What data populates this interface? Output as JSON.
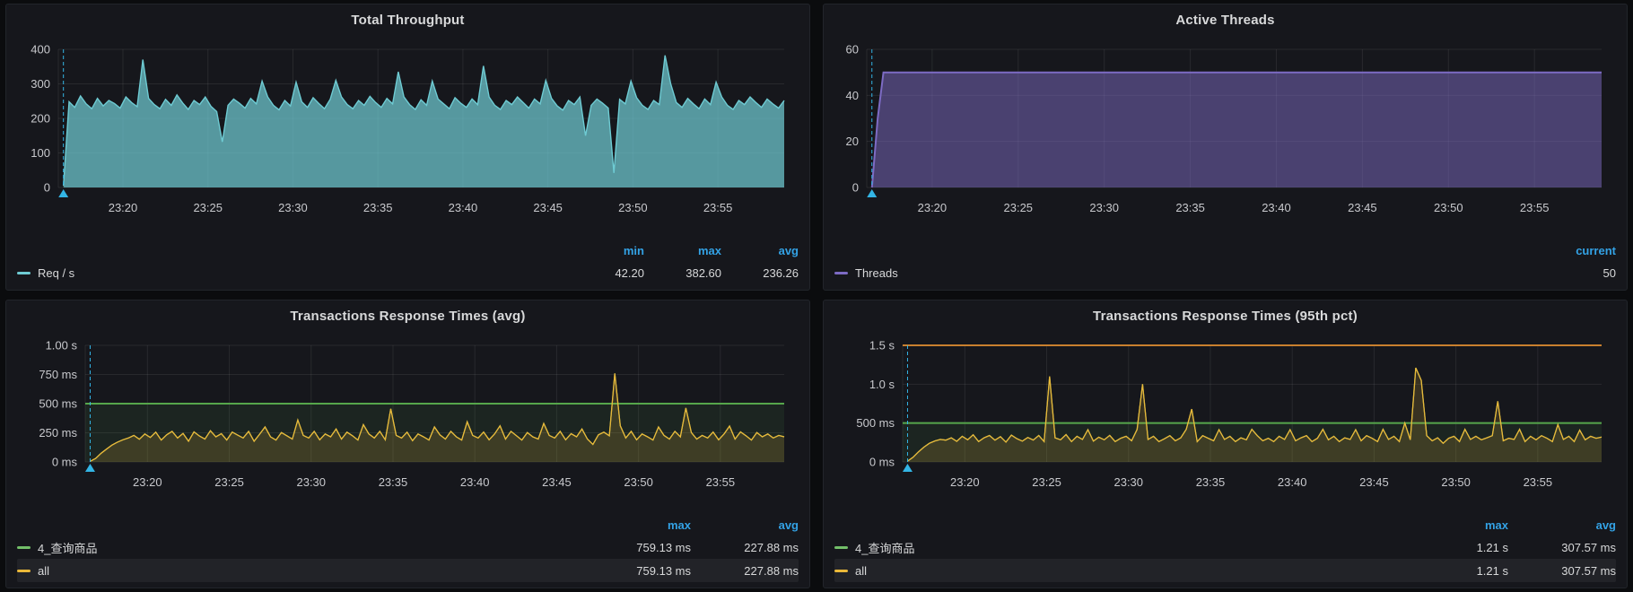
{
  "colors": {
    "page_background": "#0b0c0e",
    "panel_background": "#16171c",
    "grid_line": "rgba(255,255,255,0.08)",
    "axis_text": "#c8c9cd",
    "title_text": "#d8d9da",
    "legend_header_blue": "#33a2e5",
    "annotation_cyan": "#33b5e5",
    "threshold_green": "#56a64b",
    "threshold_orange": "#c9802e"
  },
  "x_axis": {
    "start_minute": 16.2,
    "end_minute": 58.9,
    "annotation_minute": 16.5,
    "tick_minutes": [
      20,
      25,
      30,
      35,
      40,
      45,
      50,
      55
    ],
    "tick_labels": [
      "23:20",
      "23:25",
      "23:30",
      "23:35",
      "23:40",
      "23:45",
      "23:50",
      "23:55"
    ]
  },
  "chart_data": [
    {
      "id": "total-throughput",
      "type": "area",
      "title": "Total Throughput",
      "ylim": [
        0,
        400
      ],
      "point_count": 128,
      "y_ticks": [
        {
          "value": 0,
          "label": "0"
        },
        {
          "value": 100,
          "label": "100"
        },
        {
          "value": 200,
          "label": "200"
        },
        {
          "value": 300,
          "label": "300"
        },
        {
          "value": 400,
          "label": "400"
        }
      ],
      "series": [
        {
          "name": "Req / s",
          "line_color": "#6ecbd3",
          "line_width": 1.4,
          "fill_color": "rgba(111,203,210,0.72)",
          "values": [
            5,
            248,
            232,
            265,
            242,
            228,
            258,
            236,
            252,
            243,
            230,
            262,
            246,
            234,
            370,
            258,
            240,
            228,
            255,
            238,
            268,
            245,
            226,
            252,
            240,
            262,
            235,
            220,
            132,
            238,
            256,
            244,
            230,
            258,
            242,
            308,
            262,
            238,
            225,
            252,
            236,
            305,
            248,
            232,
            260,
            243,
            228,
            255,
            310,
            262,
            240,
            228,
            252,
            238,
            264,
            246,
            232,
            258,
            242,
            335,
            262,
            240,
            226,
            254,
            238,
            308,
            256,
            242,
            228,
            260,
            244,
            232,
            256,
            240,
            352,
            262,
            238,
            226,
            252,
            240,
            262,
            246,
            230,
            256,
            242,
            310,
            258,
            236,
            224,
            252,
            240,
            262,
            150,
            238,
            256,
            244,
            230,
            42.2,
            255,
            242,
            308,
            260,
            238,
            226,
            252,
            240,
            382.6,
            300,
            246,
            232,
            258,
            242,
            228,
            256,
            240,
            305,
            262,
            238,
            226,
            252,
            240,
            262,
            246,
            232,
            256,
            242,
            230,
            252
          ]
        }
      ],
      "legend": {
        "headers": [
          "min",
          "max",
          "avg"
        ],
        "rows": [
          {
            "name": "Req / s",
            "color": "#6ecbd3",
            "stats": [
              "42.20",
              "382.60",
              "236.26"
            ],
            "highlight": false
          }
        ]
      }
    },
    {
      "id": "active-threads",
      "type": "area",
      "title": "Active Threads",
      "ylim": [
        0,
        60
      ],
      "point_count": 128,
      "hold_last": true,
      "y_ticks": [
        {
          "value": 0,
          "label": "0"
        },
        {
          "value": 20,
          "label": "20"
        },
        {
          "value": 40,
          "label": "40"
        },
        {
          "value": 60,
          "label": "60"
        }
      ],
      "series": [
        {
          "name": "Threads",
          "line_color": "#7d6bc4",
          "line_width": 2,
          "fill_color": "rgba(125,107,196,0.5)",
          "values": [
            0,
            30,
            50
          ]
        }
      ],
      "legend": {
        "headers": [
          "current"
        ],
        "rows": [
          {
            "name": "Threads",
            "color": "#7d6bc4",
            "stats": [
              "50"
            ],
            "highlight": false
          }
        ]
      }
    },
    {
      "id": "transactions-response-times-avg",
      "type": "line",
      "title": "Transactions Response Times (avg)",
      "ylim": [
        0,
        1000
      ],
      "point_count": 128,
      "y_ticks": [
        {
          "value": 0,
          "label": "0 ms"
        },
        {
          "value": 250,
          "label": "250 ms"
        },
        {
          "value": 500,
          "label": "500 ms"
        },
        {
          "value": 750,
          "label": "750 ms"
        },
        {
          "value": 1000,
          "label": "1.00 s"
        }
      ],
      "thresholds": [
        {
          "value": 500,
          "line_color": "#56a64b",
          "region_fill": "rgba(86,166,75,0.10)"
        }
      ],
      "values": [
        5,
        30,
        75,
        110,
        145,
        170,
        190,
        205,
        228,
        195,
        240,
        210,
        255,
        188,
        232,
        262,
        205,
        245,
        178,
        258,
        222,
        196,
        268,
        215,
        242,
        188,
        256,
        230,
        205,
        262,
        178,
        238,
        300,
        215,
        188,
        252,
        225,
        196,
        360,
        228,
        205,
        262,
        190,
        240,
        215,
        282,
        196,
        255,
        225,
        188,
        320,
        240,
        205,
        262,
        190,
        455,
        228,
        205,
        255,
        182,
        240,
        215,
        188,
        300,
        232,
        196,
        262,
        215,
        188,
        345,
        228,
        205,
        256,
        190,
        240,
        310,
        196,
        262,
        225,
        188,
        252,
        215,
        196,
        330,
        228,
        205,
        262,
        190,
        242,
        215,
        282,
        196,
        150,
        232,
        255,
        225,
        759.13,
        310,
        205,
        262,
        190,
        240,
        215,
        188,
        300,
        228,
        196,
        262,
        215,
        462,
        252,
        196,
        228,
        205,
        256,
        190,
        240,
        308,
        196,
        258,
        225,
        188,
        252,
        215,
        240,
        205,
        228,
        215
      ],
      "series": [
        {
          "name": "4_查询商品",
          "line_color": "#73bf69",
          "line_width": 1.2,
          "fill_color": "none"
        },
        {
          "name": "all",
          "line_color": "#eab839",
          "line_width": 1.3,
          "fill_color": "rgba(234,184,57,0.17)"
        }
      ],
      "legend": {
        "headers": [
          "max",
          "avg"
        ],
        "rows": [
          {
            "name": "4_查询商品",
            "color": "#73bf69",
            "stats": [
              "759.13 ms",
              "227.88 ms"
            ],
            "highlight": false
          },
          {
            "name": "all",
            "color": "#eab839",
            "stats": [
              "759.13 ms",
              "227.88 ms"
            ],
            "highlight": true
          }
        ]
      }
    },
    {
      "id": "transactions-response-times-95th",
      "type": "line",
      "title": "Transactions Response Times (95th pct)",
      "ylim": [
        0,
        1500
      ],
      "point_count": 128,
      "y_ticks": [
        {
          "value": 0,
          "label": "0 ms"
        },
        {
          "value": 500,
          "label": "500 ms"
        },
        {
          "value": 1000,
          "label": "1.0 s"
        },
        {
          "value": 1500,
          "label": "1.5 s"
        }
      ],
      "thresholds": [
        {
          "value": 500,
          "line_color": "#56a64b",
          "region_fill": "rgba(86,166,75,0.10)"
        },
        {
          "value": 1500,
          "line_color": "#c9802e",
          "region_fill": "none"
        }
      ],
      "values": [
        10,
        60,
        130,
        190,
        240,
        270,
        290,
        280,
        310,
        265,
        330,
        285,
        350,
        262,
        310,
        340,
        280,
        325,
        255,
        345,
        300,
        268,
        315,
        282,
        340,
        262,
        1100,
        310,
        285,
        352,
        262,
        330,
        290,
        415,
        268,
        318,
        285,
        342,
        262,
        305,
        330,
        272,
        418,
        1000,
        290,
        330,
        262,
        298,
        338,
        272,
        310,
        420,
        680,
        262,
        338,
        305,
        272,
        415,
        290,
        330,
        262,
        310,
        285,
        420,
        338,
        272,
        305,
        262,
        330,
        290,
        415,
        272,
        310,
        338,
        262,
        305,
        420,
        285,
        330,
        262,
        310,
        290,
        415,
        272,
        338,
        305,
        262,
        420,
        290,
        330,
        262,
        500,
        285,
        1210,
        1050,
        338,
        272,
        310,
        240,
        305,
        330,
        262,
        420,
        290,
        330,
        285,
        310,
        338,
        780,
        272,
        305,
        290,
        420,
        262,
        330,
        285,
        338,
        305,
        262,
        480,
        290,
        330,
        262,
        410,
        285,
        330,
        305,
        320
      ],
      "series": [
        {
          "name": "4_查询商品",
          "line_color": "#73bf69",
          "line_width": 1.2,
          "fill_color": "none"
        },
        {
          "name": "all",
          "line_color": "#eab839",
          "line_width": 1.3,
          "fill_color": "rgba(234,184,57,0.17)"
        }
      ],
      "legend": {
        "headers": [
          "max",
          "avg"
        ],
        "rows": [
          {
            "name": "4_查询商品",
            "color": "#73bf69",
            "stats": [
              "1.21 s",
              "307.57 ms"
            ],
            "highlight": false
          },
          {
            "name": "all",
            "color": "#eab839",
            "stats": [
              "1.21 s",
              "307.57 ms"
            ],
            "highlight": true
          }
        ]
      }
    }
  ]
}
